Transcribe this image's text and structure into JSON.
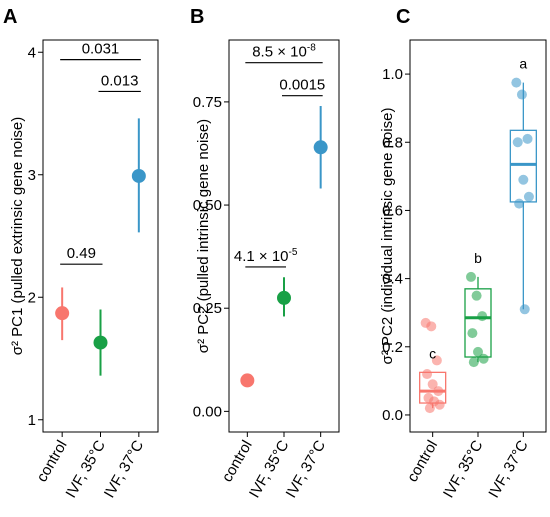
{
  "chart_data": [
    {
      "type": "scatter",
      "panel": "A",
      "ylabel": "σ² PC1 (pulled extrinsic gene noise)",
      "categories": [
        "control",
        "IVF, 35°C",
        "IVF, 37°C"
      ],
      "ylim": [
        0.9,
        4.1
      ],
      "yticks": [
        1,
        2,
        3,
        4
      ],
      "ytick_labels": [
        "1",
        "2",
        "3",
        "4"
      ],
      "points": [
        {
          "category": "control",
          "value": 1.87,
          "low": 1.65,
          "high": 2.08,
          "color": "#F8766D"
        },
        {
          "category": "IVF, 35°C",
          "value": 1.63,
          "low": 1.36,
          "high": 1.9,
          "color": "#19A046"
        },
        {
          "category": "IVF, 37°C",
          "value": 2.99,
          "low": 2.53,
          "high": 3.46,
          "color": "#3A96C8"
        }
      ],
      "comparisons": [
        {
          "from": "control",
          "to": "IVF, 35°C",
          "y": 2.27,
          "label": "0.49"
        },
        {
          "from": "IVF, 35°C",
          "to": "IVF, 37°C",
          "y": 3.68,
          "label": "0.013"
        },
        {
          "from": "control",
          "to": "IVF, 37°C",
          "y": 3.94,
          "label": "0.031"
        }
      ]
    },
    {
      "type": "scatter",
      "panel": "B",
      "ylabel": "σ² PC2 (pulled intrinsic gene noise)",
      "categories": [
        "control",
        "IVF, 35°C",
        "IVF, 37°C"
      ],
      "ylim": [
        -0.05,
        0.9
      ],
      "yticks": [
        0,
        0.25,
        0.5,
        0.75
      ],
      "ytick_labels": [
        "0.00",
        "0.25",
        "0.50",
        "0.75"
      ],
      "points": [
        {
          "category": "control",
          "value": 0.075,
          "low": 0.075,
          "high": 0.075,
          "color": "#F8766D"
        },
        {
          "category": "IVF, 35°C",
          "value": 0.275,
          "low": 0.23,
          "high": 0.325,
          "color": "#19A046"
        },
        {
          "category": "IVF, 37°C",
          "value": 0.64,
          "low": 0.54,
          "high": 0.74,
          "color": "#3A96C8"
        }
      ],
      "comparisons": [
        {
          "from": "control",
          "to": "IVF, 35°C",
          "y": 0.35,
          "label": "4.1 × 10",
          "exp": "-5"
        },
        {
          "from": "IVF, 35°C",
          "to": "IVF, 37°C",
          "y": 0.765,
          "label": "0.0015",
          "exp": ""
        },
        {
          "from": "control",
          "to": "IVF, 37°C",
          "y": 0.845,
          "label": "8.5 × 10",
          "exp": "-8"
        }
      ]
    },
    {
      "type": "box",
      "panel": "C",
      "ylabel": "σ² PC2 (individual intrinsic gene noise)",
      "categories": [
        "control",
        "IVF, 35°C",
        "IVF, 37°C"
      ],
      "xtick_labels": [
        "control",
        "IVF, 35°C",
        "IVF, 37°C"
      ],
      "ylim": [
        -0.05,
        1.1
      ],
      "yticks": [
        0,
        0.2,
        0.4,
        0.6,
        0.8,
        1.0
      ],
      "ytick_labels": [
        "0.0",
        "0.2",
        "0.4",
        "0.6",
        "0.8",
        "1.0"
      ],
      "groups": [
        {
          "category": "control",
          "color": "#F8766D",
          "q1": 0.035,
          "median": 0.07,
          "q3": 0.125,
          "whisker_low": 0.02,
          "whisker_high": 0.125,
          "letter": "c",
          "points": [
            0.27,
            0.26,
            0.16,
            0.12,
            0.09,
            0.07,
            0.05,
            0.04,
            0.03,
            0.02
          ]
        },
        {
          "category": "IVF, 35°C",
          "color": "#19A046",
          "q1": 0.17,
          "median": 0.285,
          "q3": 0.37,
          "whisker_low": 0.155,
          "whisker_high": 0.405,
          "letter": "b",
          "points": [
            0.405,
            0.35,
            0.29,
            0.24,
            0.185,
            0.165,
            0.155
          ]
        },
        {
          "category": "IVF, 37°C",
          "color": "#3A96C8",
          "q1": 0.625,
          "median": 0.735,
          "q3": 0.835,
          "whisker_low": 0.31,
          "whisker_high": 0.975,
          "letter": "a",
          "points": [
            0.975,
            0.94,
            0.81,
            0.8,
            0.69,
            0.64,
            0.62,
            0.31
          ]
        }
      ]
    }
  ]
}
